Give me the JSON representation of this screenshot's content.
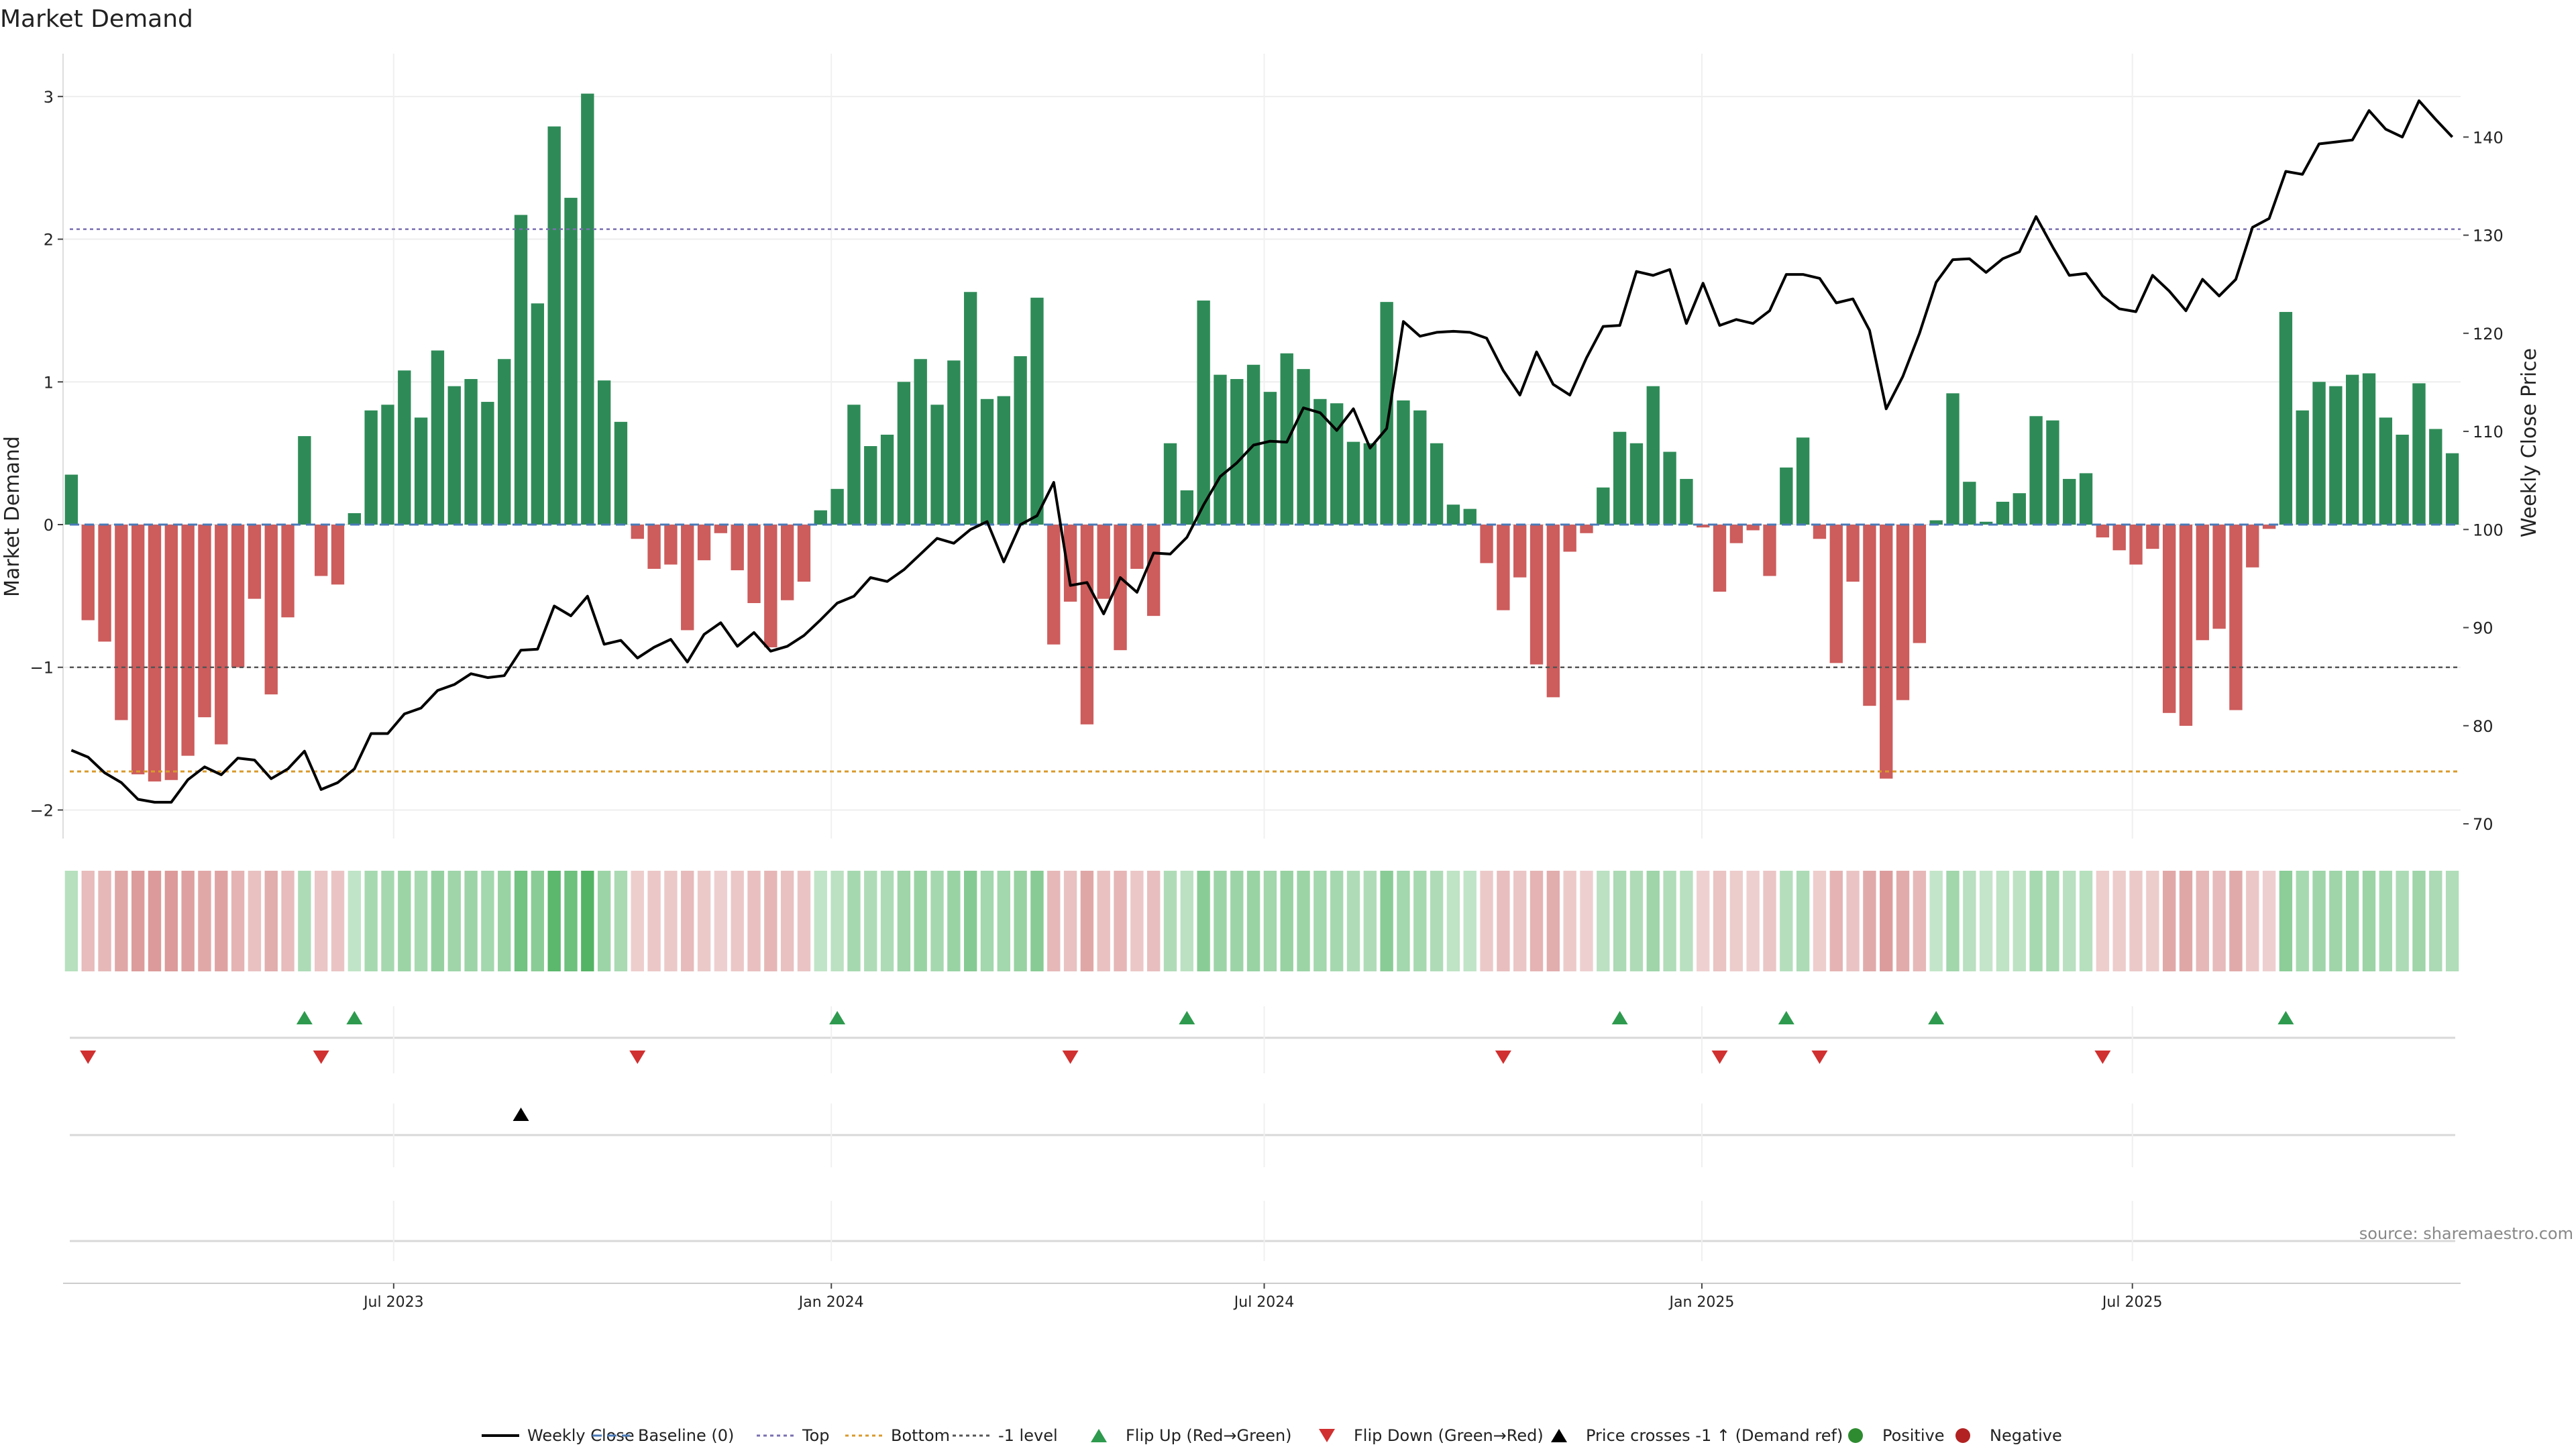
{
  "chart_data": {
    "type": "bar",
    "title": "Market Demand",
    "ylabel": "Market Demand",
    "y2label": "Weekly Close Price",
    "ylim": [
      -2.2,
      3.3
    ],
    "y2lim": [
      68.5,
      148.5
    ],
    "yticks": [
      "3",
      "2",
      "1",
      "0",
      "−1",
      "−2"
    ],
    "y2ticks": [
      "140",
      "130",
      "120",
      "110",
      "100",
      "90",
      "80",
      "70"
    ],
    "top_level": 2.07,
    "bottom_level": -1.73,
    "minus_one_level": -1.0,
    "x_start": "2023-02-12",
    "x_tick_labels": [
      {
        "label": "Jul 2023",
        "date": "2023-07-01"
      },
      {
        "label": "Jan 2024",
        "date": "2024-01-01"
      },
      {
        "label": "Jul 2024",
        "date": "2024-07-01"
      },
      {
        "label": "Jan 2025",
        "date": "2025-01-01"
      },
      {
        "label": "Jul 2025",
        "date": "2025-07-01"
      }
    ],
    "demand": [
      0.35,
      -0.67,
      -0.82,
      -1.37,
      -1.75,
      -1.8,
      -1.79,
      -1.62,
      -1.35,
      -1.54,
      -1.0,
      -0.52,
      -1.19,
      -0.65,
      0.62,
      -0.36,
      -0.42,
      0.08,
      0.8,
      0.84,
      1.08,
      0.75,
      1.22,
      0.97,
      1.02,
      0.86,
      1.16,
      2.17,
      1.55,
      2.79,
      2.29,
      3.02,
      1.01,
      0.72,
      -0.1,
      -0.31,
      -0.28,
      -0.74,
      -0.25,
      -0.06,
      -0.32,
      -0.55,
      -0.86,
      -0.53,
      -0.4,
      0.1,
      0.25,
      0.84,
      0.55,
      0.63,
      1.0,
      1.16,
      0.84,
      1.15,
      1.63,
      0.88,
      0.9,
      1.18,
      1.59,
      -0.84,
      -0.54,
      -1.4,
      -0.52,
      -0.88,
      -0.31,
      -0.64,
      0.57,
      0.24,
      1.57,
      1.05,
      1.02,
      1.12,
      0.93,
      1.2,
      1.09,
      0.88,
      0.85,
      0.58,
      0.57,
      1.56,
      0.87,
      0.8,
      0.57,
      0.14,
      0.11,
      -0.27,
      -0.6,
      -0.37,
      -0.98,
      -1.21,
      -0.19,
      -0.06,
      0.26,
      0.65,
      0.57,
      0.97,
      0.51,
      0.32,
      -0.02,
      -0.47,
      -0.13,
      -0.04,
      -0.36,
      0.4,
      0.61,
      -0.1,
      -0.97,
      -0.4,
      -1.27,
      -1.78,
      -1.23,
      -0.83,
      0.03,
      0.92,
      0.3,
      0.02,
      0.16,
      0.22,
      0.76,
      0.73,
      0.32,
      0.36,
      -0.09,
      -0.18,
      -0.28,
      -0.17,
      -1.32,
      -1.41,
      -0.81,
      -0.73,
      -1.3,
      -0.3,
      -0.03,
      1.49,
      0.8,
      1.0,
      0.97,
      1.05,
      1.06,
      0.75,
      0.63,
      0.99,
      0.67,
      0.5
    ],
    "close": [
      77.5,
      76.8,
      75.2,
      74.2,
      72.5,
      72.2,
      72.2,
      74.5,
      75.8,
      75.0,
      76.7,
      76.5,
      74.6,
      75.6,
      77.4,
      73.5,
      74.2,
      75.6,
      79.2,
      79.2,
      81.2,
      81.8,
      83.6,
      84.2,
      85.3,
      84.9,
      85.1,
      87.7,
      87.8,
      92.2,
      91.2,
      93.2,
      88.3,
      88.7,
      86.9,
      88.0,
      88.8,
      86.5,
      89.3,
      90.5,
      88.1,
      89.5,
      87.6,
      88.1,
      89.2,
      90.8,
      92.5,
      93.2,
      95.1,
      94.7,
      95.9,
      97.5,
      99.1,
      98.6,
      100.0,
      100.8,
      96.7,
      100.5,
      101.4,
      104.8,
      94.3,
      94.6,
      91.4,
      95.1,
      93.6,
      97.6,
      97.5,
      99.2,
      102.5,
      105.4,
      106.8,
      108.6,
      109.0,
      108.9,
      112.4,
      111.9,
      110.1,
      112.3,
      108.3,
      110.3,
      121.2,
      119.7,
      120.1,
      120.2,
      120.1,
      119.5,
      116.2,
      113.7,
      118.1,
      114.8,
      113.7,
      117.5,
      120.7,
      120.8,
      126.3,
      125.9,
      126.5,
      121.0,
      125.1,
      120.8,
      121.4,
      121.0,
      122.3,
      126.0,
      126.0,
      125.6,
      123.1,
      123.5,
      120.3,
      112.3,
      115.6,
      120.0,
      125.2,
      127.5,
      127.6,
      126.2,
      127.6,
      128.3,
      131.9,
      128.8,
      125.9,
      126.1,
      123.8,
      122.5,
      122.2,
      125.9,
      124.3,
      122.3,
      125.5,
      123.8,
      125.5,
      130.8,
      131.7,
      136.5,
      136.2,
      139.3,
      139.5,
      139.7,
      142.7,
      140.8,
      140.0,
      143.7,
      141.8,
      140.0
    ],
    "flip_up_weeks": [
      14,
      17,
      46,
      67,
      93,
      103,
      112,
      133
    ],
    "flip_down_weeks": [
      1,
      15,
      34,
      60,
      86,
      99,
      105,
      122
    ],
    "price_cross_weeks": [
      27
    ],
    "source_text": "source: sharemaestro.com",
    "legend": [
      {
        "key": "close",
        "label": "Weekly Close",
        "color": "#000000"
      },
      {
        "key": "baseline",
        "label": "Baseline (0)",
        "color": "#4a7ab8"
      },
      {
        "key": "top",
        "label": "Top",
        "color": "#7a6fb0"
      },
      {
        "key": "bottom",
        "label": "Bottom",
        "color": "#d99a2b"
      },
      {
        "key": "minus1",
        "label": "-1 level",
        "color": "#555555"
      },
      {
        "key": "flipup",
        "label": "Flip Up (Red→Green)",
        "color": "#2e9a4e"
      },
      {
        "key": "flipdown",
        "label": "Flip Down (Green→Red)",
        "color": "#d03030"
      },
      {
        "key": "pricecross",
        "label": "Price crosses -1 ↑ (Demand ref)",
        "color": "#000000"
      },
      {
        "key": "positive",
        "label": "Positive",
        "color": "#2e8b30"
      },
      {
        "key": "negative",
        "label": "Negative",
        "color": "#b22222"
      }
    ],
    "colors": {
      "positive_bar": "#2e8b57",
      "negative_bar": "#cd5c5c",
      "heat_positive": "#3caa50",
      "heat_negative": "#c96464"
    }
  }
}
